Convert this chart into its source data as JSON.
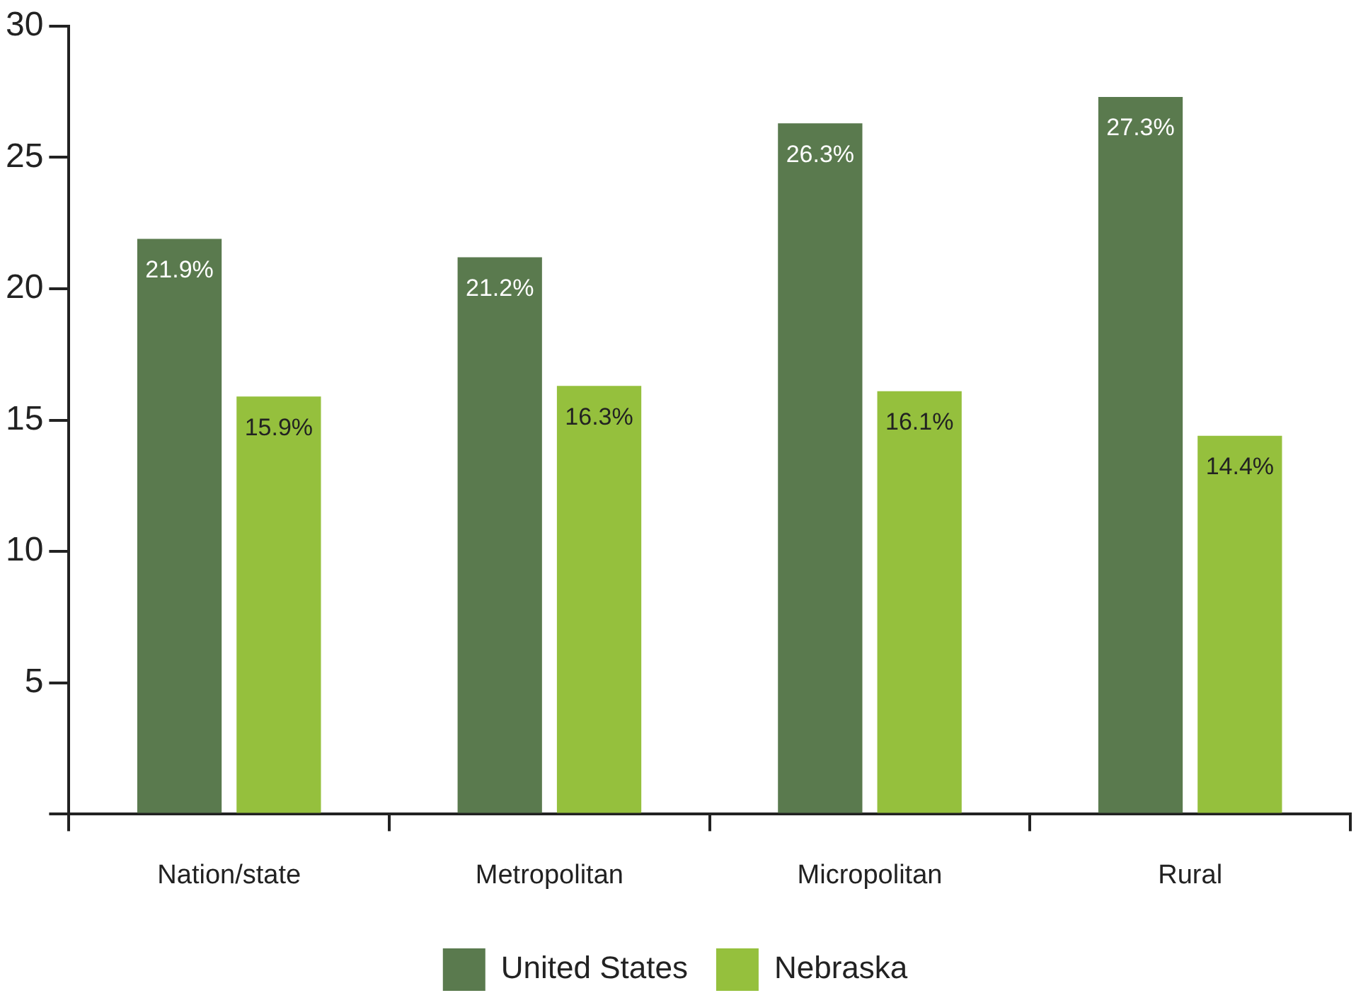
{
  "chart_data": {
    "type": "bar",
    "categories": [
      "Nation/state",
      "Metropolitan",
      "Micropolitan",
      "Rural"
    ],
    "series": [
      {
        "name": "United States",
        "color": "#5a7a4e",
        "values": [
          21.9,
          21.2,
          26.3,
          27.3
        ],
        "value_labels": [
          "21.9%",
          "21.2%",
          "26.3%",
          "27.3%"
        ]
      },
      {
        "name": "Nebraska",
        "color": "#95c03d",
        "values": [
          15.9,
          16.3,
          16.1,
          14.4
        ],
        "value_labels": [
          "15.9%",
          "16.3%",
          "16.1%",
          "14.4%"
        ]
      }
    ],
    "ylim": [
      0,
      30
    ],
    "yticks": [
      {
        "value": 0,
        "label": null
      },
      5,
      10,
      15,
      20,
      25,
      30
    ],
    "grid": false,
    "legend": "bottom"
  }
}
